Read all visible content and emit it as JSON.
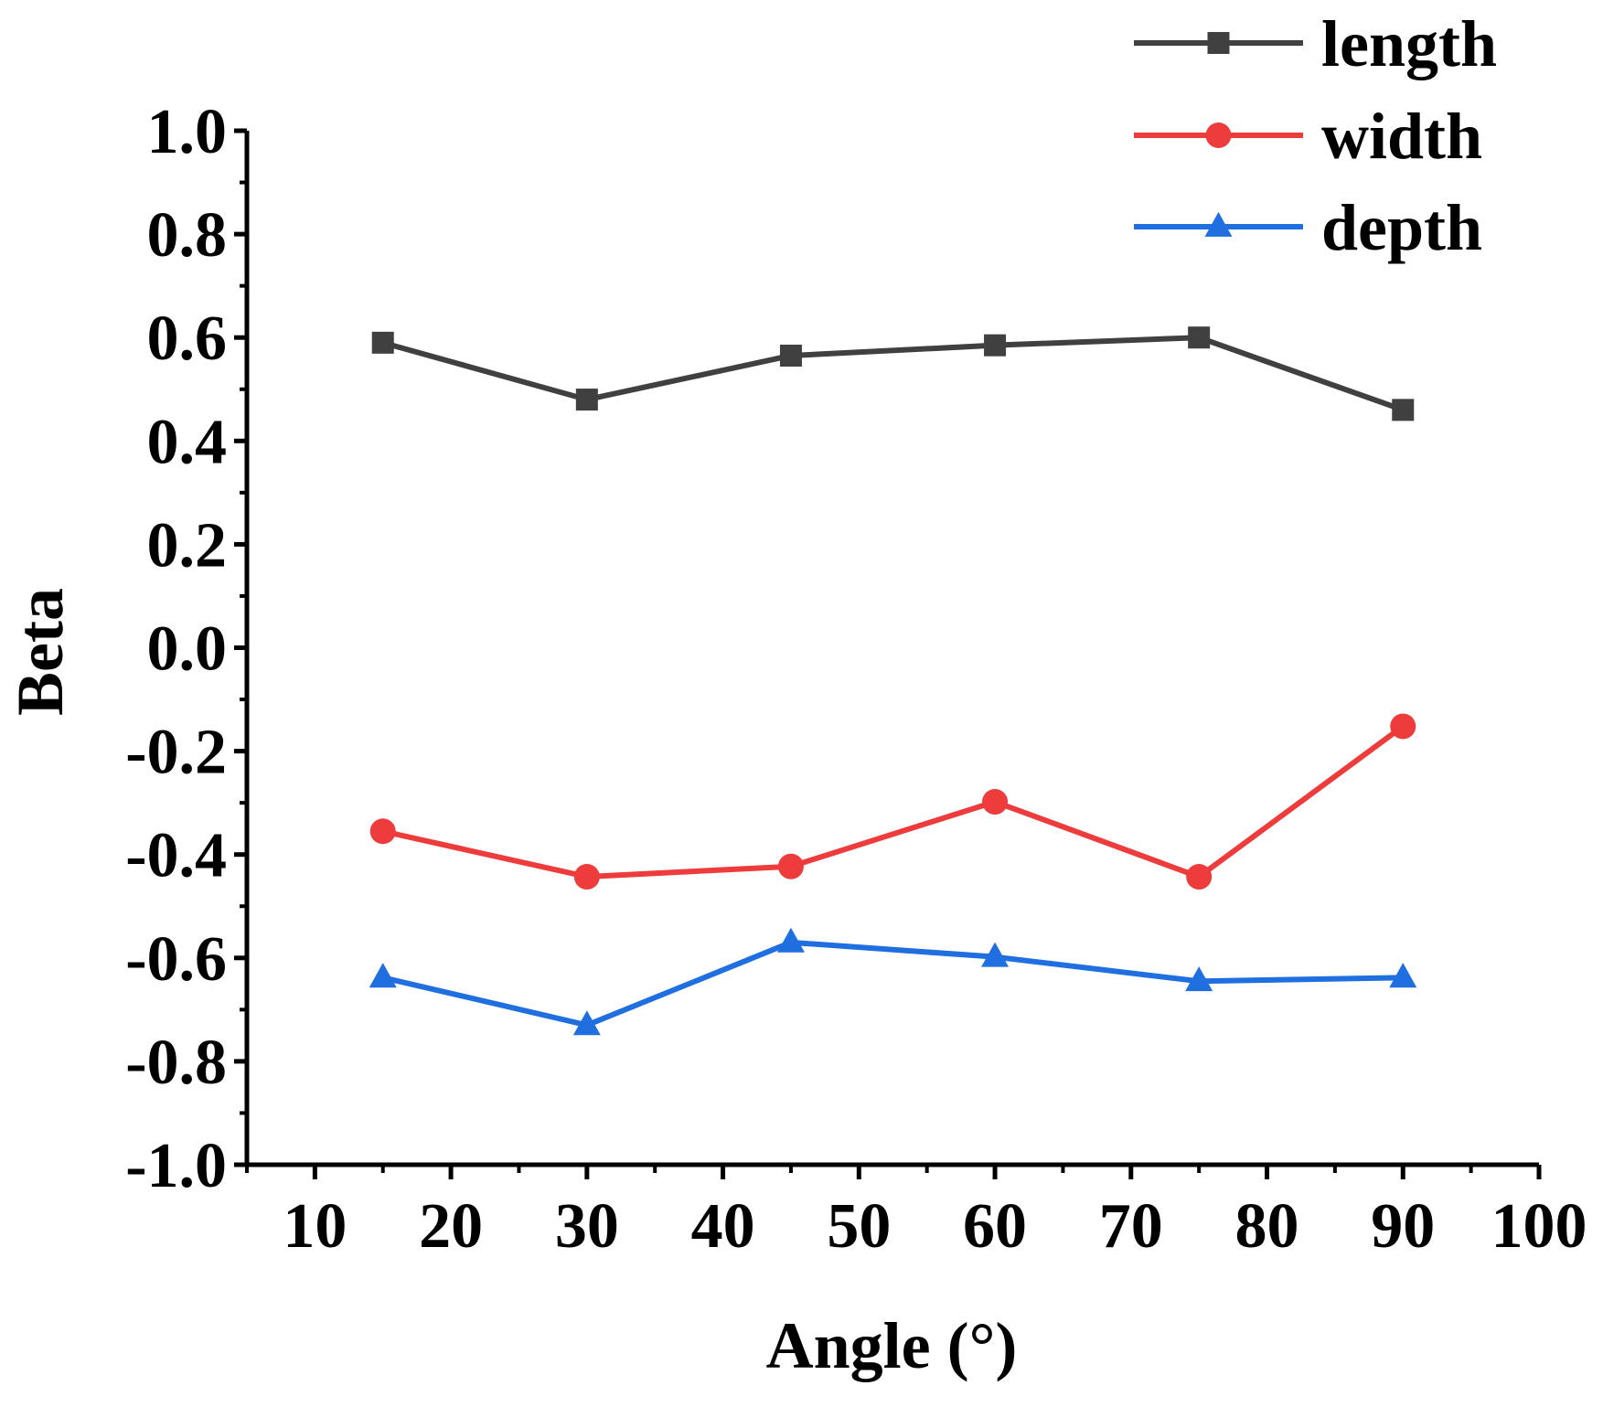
{
  "chart_data": {
    "type": "line",
    "xlabel": "Angle (°)",
    "ylabel": "Beta",
    "xlim": [
      5,
      100
    ],
    "ylim": [
      -1.0,
      1.0
    ],
    "xticks": [
      "10",
      "20",
      "30",
      "40",
      "50",
      "60",
      "70",
      "80",
      "90",
      "100"
    ],
    "yticks": [
      "-1.0",
      "-0.8",
      "-0.6",
      "-0.4",
      "-0.2",
      "0.0",
      "0.2",
      "0.4",
      "0.6",
      "0.8",
      "1.0"
    ],
    "x": [
      15,
      30,
      45,
      60,
      75,
      90
    ],
    "grid": false,
    "legend_position": "top-right",
    "series": [
      {
        "name": "length",
        "marker": "square",
        "color": "#404040",
        "values": [
          0.59,
          0.48,
          0.565,
          0.585,
          0.6,
          0.46
        ]
      },
      {
        "name": "width",
        "marker": "circle",
        "color": "#ee3b3b",
        "values": [
          -0.355,
          -0.443,
          -0.423,
          -0.298,
          -0.443,
          -0.152
        ]
      },
      {
        "name": "depth",
        "marker": "triangle",
        "color": "#1f6fe0",
        "values": [
          -0.638,
          -0.73,
          -0.57,
          -0.598,
          -0.645,
          -0.638
        ]
      }
    ]
  }
}
